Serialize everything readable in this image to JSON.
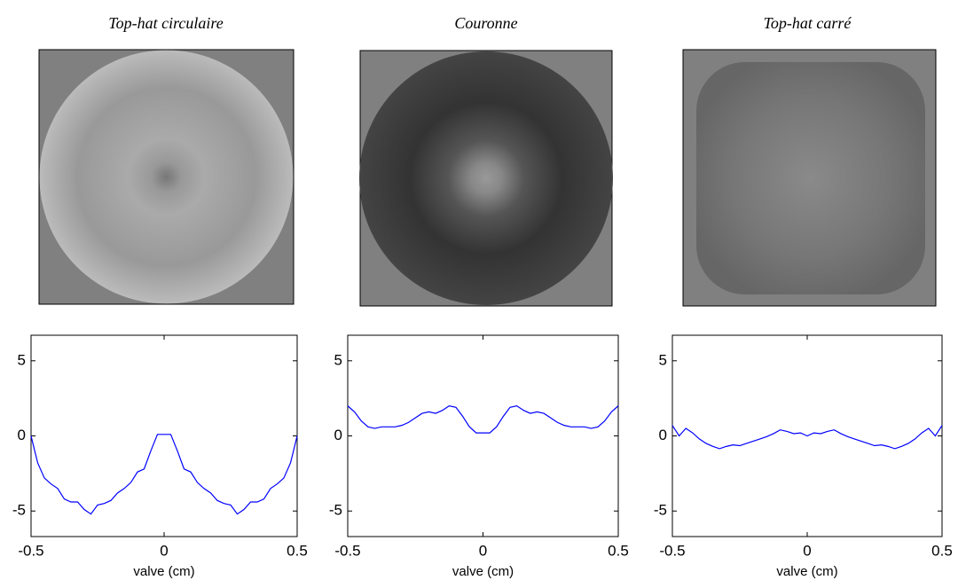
{
  "chart_data": [
    {
      "type": "line",
      "title": "Top-hat circulaire",
      "xlabel": "valve (cm)",
      "x": [
        -0.5,
        -0.475,
        -0.45,
        -0.425,
        -0.4,
        -0.375,
        -0.35,
        -0.325,
        -0.3,
        -0.275,
        -0.25,
        -0.225,
        -0.2,
        -0.175,
        -0.15,
        -0.125,
        -0.1,
        -0.075,
        -0.05,
        -0.025,
        0,
        0.025,
        0.05,
        0.075,
        0.1,
        0.125,
        0.15,
        0.175,
        0.2,
        0.225,
        0.25,
        0.275,
        0.3,
        0.325,
        0.35,
        0.375,
        0.4,
        0.425,
        0.45,
        0.475,
        0.5
      ],
      "series": [
        {
          "color": "#0000ff",
          "values": [
            0,
            -1.8,
            -2.8,
            -3.2,
            -3.5,
            -4.2,
            -4.4,
            -4.4,
            -4.9,
            -5.2,
            -4.6,
            -4.5,
            -4.3,
            -3.8,
            -3.5,
            -3.1,
            -2.4,
            -2.2,
            -1.0,
            0.1,
            0.1,
            0.1,
            -1.0,
            -2.2,
            -2.4,
            -3.1,
            -3.5,
            -3.8,
            -4.3,
            -4.5,
            -4.6,
            -5.2,
            -4.9,
            -4.4,
            -4.4,
            -4.2,
            -3.5,
            -3.2,
            -2.8,
            -1.8,
            0
          ]
        }
      ],
      "xlim": [
        -0.5,
        0.5
      ],
      "ylim": [
        -6.7,
        6.7
      ],
      "xticks": [
        -0.5,
        0,
        0.5
      ],
      "yticks": [
        -5,
        0,
        5
      ]
    },
    {
      "type": "line",
      "title": "Couronne",
      "xlabel": "valve (cm)",
      "x": [
        -0.5,
        -0.475,
        -0.45,
        -0.425,
        -0.4,
        -0.375,
        -0.35,
        -0.325,
        -0.3,
        -0.275,
        -0.25,
        -0.225,
        -0.2,
        -0.175,
        -0.15,
        -0.125,
        -0.1,
        -0.075,
        -0.05,
        -0.025,
        0,
        0.025,
        0.05,
        0.075,
        0.1,
        0.125,
        0.15,
        0.175,
        0.2,
        0.225,
        0.25,
        0.275,
        0.3,
        0.325,
        0.35,
        0.375,
        0.4,
        0.425,
        0.45,
        0.475,
        0.5
      ],
      "series": [
        {
          "color": "#0000ff",
          "values": [
            2.0,
            1.6,
            1.0,
            0.6,
            0.5,
            0.6,
            0.6,
            0.6,
            0.7,
            0.9,
            1.2,
            1.5,
            1.6,
            1.5,
            1.7,
            2.0,
            1.9,
            1.3,
            0.6,
            0.2,
            0.2,
            0.2,
            0.6,
            1.3,
            1.9,
            2.0,
            1.7,
            1.5,
            1.6,
            1.5,
            1.2,
            0.9,
            0.7,
            0.6,
            0.6,
            0.6,
            0.5,
            0.6,
            1.0,
            1.6,
            2.0
          ]
        }
      ],
      "xlim": [
        -0.5,
        0.5
      ],
      "ylim": [
        -6.7,
        6.7
      ],
      "xticks": [
        -0.5,
        0,
        0.5
      ],
      "yticks": [
        -5,
        0,
        5
      ]
    },
    {
      "type": "line",
      "title": "Top-hat carré",
      "xlabel": "valve (cm)",
      "x": [
        -0.5,
        -0.475,
        -0.45,
        -0.425,
        -0.4,
        -0.375,
        -0.35,
        -0.325,
        -0.3,
        -0.275,
        -0.25,
        -0.225,
        -0.2,
        -0.175,
        -0.15,
        -0.125,
        -0.1,
        -0.075,
        -0.05,
        -0.025,
        0,
        0.025,
        0.05,
        0.075,
        0.1,
        0.125,
        0.15,
        0.175,
        0.2,
        0.225,
        0.25,
        0.275,
        0.3,
        0.325,
        0.35,
        0.375,
        0.4,
        0.425,
        0.45,
        0.475,
        0.5
      ],
      "series": [
        {
          "color": "#0000ff",
          "values": [
            0.7,
            0.0,
            0.5,
            0.2,
            -0.2,
            -0.5,
            -0.7,
            -0.85,
            -0.7,
            -0.6,
            -0.65,
            -0.5,
            -0.35,
            -0.2,
            -0.05,
            0.15,
            0.4,
            0.3,
            0.15,
            0.2,
            0.0,
            0.2,
            0.15,
            0.3,
            0.4,
            0.15,
            -0.05,
            -0.2,
            -0.35,
            -0.5,
            -0.65,
            -0.6,
            -0.7,
            -0.85,
            -0.7,
            -0.5,
            -0.2,
            0.2,
            0.5,
            0.0,
            0.7
          ]
        }
      ],
      "xlim": [
        -0.5,
        0.5
      ],
      "ylim": [
        -6.7,
        6.7
      ],
      "xticks": [
        -0.5,
        0,
        0.5
      ],
      "yticks": [
        -5,
        0,
        5
      ]
    }
  ]
}
